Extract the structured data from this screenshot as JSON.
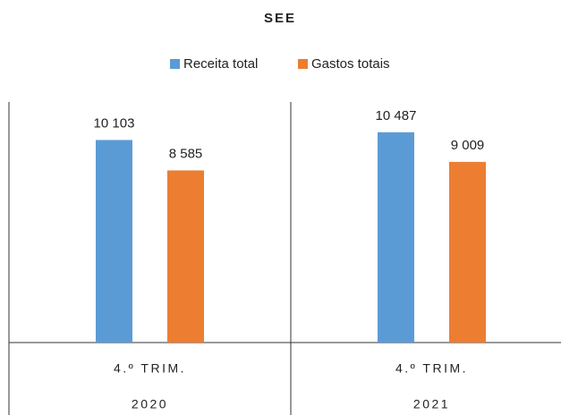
{
  "chart_data": {
    "type": "bar",
    "title": "SEE",
    "categories": [
      "4.º TRIM.",
      "4.º TRIM."
    ],
    "years": [
      "2020",
      "2021"
    ],
    "series": [
      {
        "name": "Receita total",
        "color": "#5b9bd5",
        "values": [
          10103,
          10487
        ],
        "value_labels": [
          "10 103",
          "10 487"
        ]
      },
      {
        "name": "Gastos totais",
        "color": "#ed7d31",
        "values": [
          8585,
          9009
        ],
        "value_labels": [
          "8 585",
          "9 009"
        ]
      }
    ],
    "ylim": [
      0,
      12000
    ],
    "legend": "top"
  }
}
